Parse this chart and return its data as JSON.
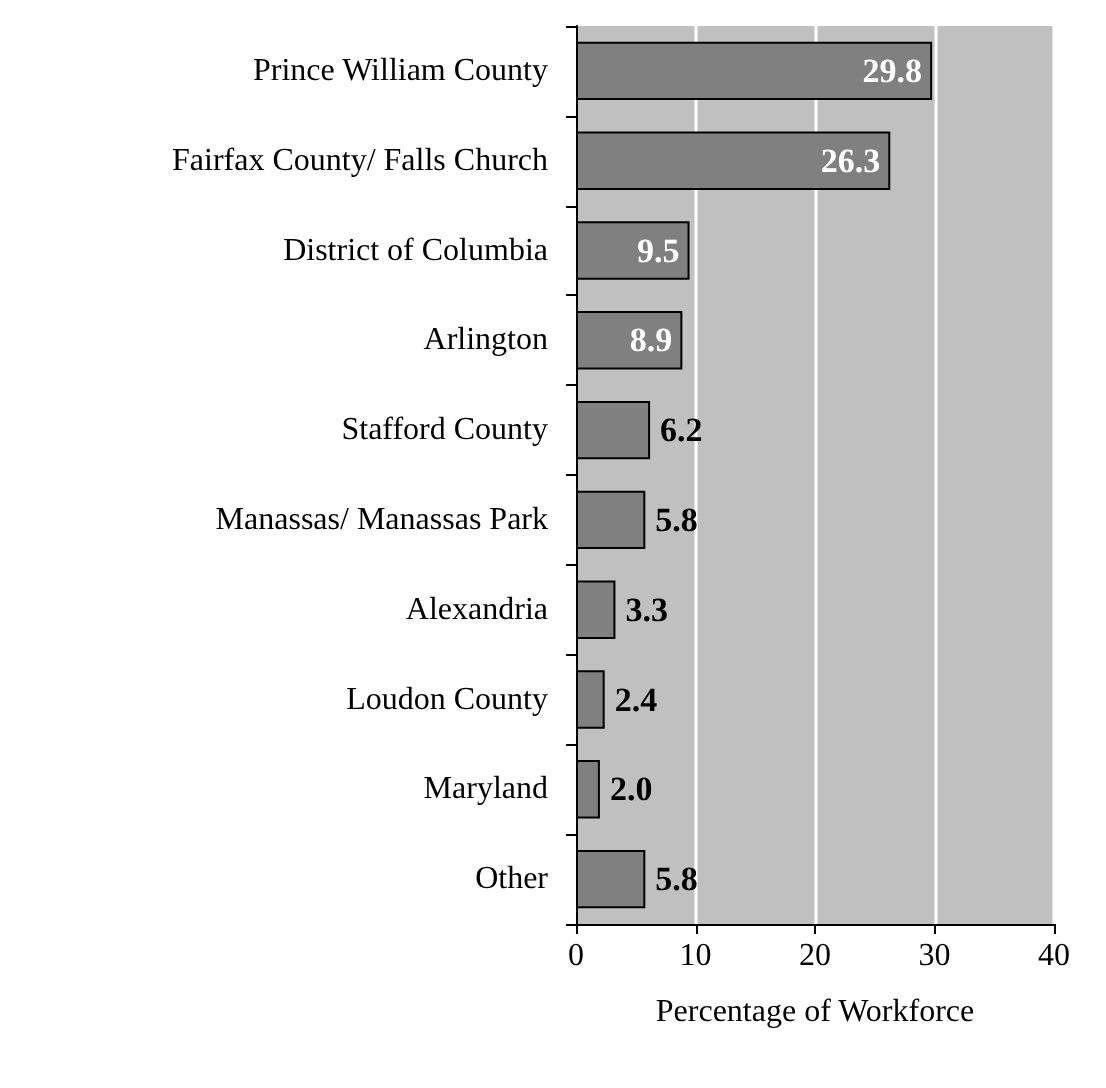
{
  "chart_data": {
    "type": "bar",
    "orientation": "horizontal",
    "xlabel": "Percentage of Workforce",
    "categories": [
      "Prince William County",
      "Fairfax County/ Falls Church",
      "District of Columbia",
      "Arlington",
      "Stafford County",
      "Manassas/ Manassas Park",
      "Alexandria",
      "Loudon County",
      "Maryland",
      "Other"
    ],
    "values": [
      29.8,
      26.3,
      9.5,
      8.9,
      6.2,
      5.8,
      3.3,
      2.4,
      2.0,
      5.8
    ],
    "value_labels": [
      "29.8",
      "26.3",
      "9.5",
      "8.9",
      "6.2",
      "5.8",
      "3.3",
      "2.4",
      "2.0",
      "5.8"
    ],
    "color": "#808080",
    "xlim": [
      0,
      40
    ],
    "xticks": [
      0,
      10,
      20,
      30,
      40
    ],
    "grid": "x"
  }
}
